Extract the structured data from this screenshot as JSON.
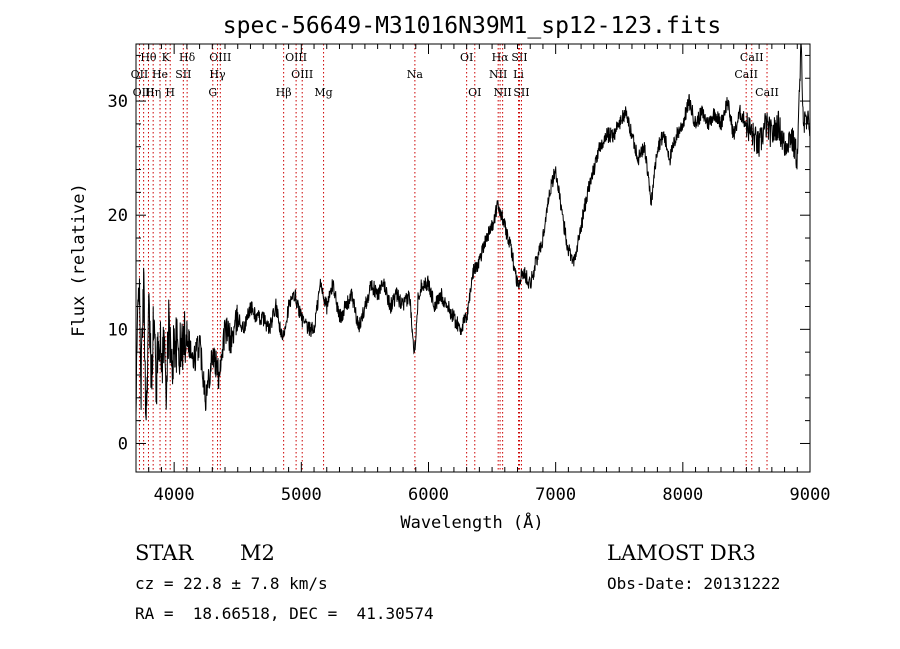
{
  "chart_data": {
    "type": "line",
    "title": "spec-56649-M31016N39M1_sp12-123.fits",
    "xlabel": "Wavelength (Å)",
    "ylabel": "Flux (relative)",
    "xlim": [
      3700,
      9000
    ],
    "ylim": [
      -2.5,
      35
    ],
    "xticks": [
      4000,
      5000,
      6000,
      7000,
      8000,
      9000
    ],
    "yticks": [
      0,
      10,
      20,
      30
    ],
    "grid": false,
    "line_color": "#000000",
    "marker_color": "#cc0000",
    "spectrum": {
      "x": [
        3700,
        3720,
        3740,
        3760,
        3780,
        3800,
        3820,
        3840,
        3860,
        3880,
        3900,
        3920,
        3940,
        3960,
        3980,
        4000,
        4050,
        4100,
        4150,
        4200,
        4250,
        4300,
        4350,
        4400,
        4450,
        4500,
        4550,
        4600,
        4650,
        4700,
        4750,
        4800,
        4850,
        4900,
        4950,
        5000,
        5050,
        5100,
        5150,
        5200,
        5250,
        5300,
        5350,
        5400,
        5450,
        5500,
        5550,
        5600,
        5650,
        5700,
        5750,
        5800,
        5850,
        5890,
        5920,
        5950,
        6000,
        6050,
        6100,
        6150,
        6200,
        6250,
        6300,
        6350,
        6400,
        6450,
        6500,
        6550,
        6600,
        6650,
        6700,
        6750,
        6800,
        6850,
        6900,
        6950,
        7000,
        7050,
        7100,
        7150,
        7200,
        7250,
        7300,
        7350,
        7400,
        7450,
        7500,
        7550,
        7600,
        7650,
        7700,
        7750,
        7800,
        7850,
        7900,
        7950,
        8000,
        8050,
        8100,
        8150,
        8200,
        8250,
        8300,
        8350,
        8400,
        8450,
        8500,
        8550,
        8600,
        8650,
        8700,
        8750,
        8800,
        8850,
        8900,
        8930,
        8950,
        9000
      ],
      "y": [
        2,
        16,
        5,
        14,
        2,
        12,
        6,
        11,
        5,
        10,
        7,
        9,
        5,
        11,
        6,
        9,
        8,
        10,
        7,
        9,
        4,
        8,
        6,
        10,
        9,
        11,
        10,
        12,
        11,
        11,
        10,
        12,
        9,
        12,
        13,
        11,
        10,
        10,
        14,
        12,
        14,
        11,
        12,
        13,
        10,
        12,
        14,
        13,
        14,
        12,
        13,
        12,
        13,
        8,
        13,
        14,
        14,
        12,
        13,
        12,
        11,
        10,
        11,
        15,
        16,
        18,
        19,
        21,
        19,
        17,
        14,
        15,
        14,
        16,
        18,
        22,
        24,
        20,
        17,
        16,
        19,
        22,
        24,
        26,
        27,
        27,
        28,
        29,
        27,
        25,
        26,
        21,
        26,
        27,
        25,
        27,
        28,
        30,
        28,
        29,
        28,
        29,
        28,
        30,
        27,
        29,
        28,
        27,
        26,
        28,
        27,
        28,
        26,
        27,
        25,
        35,
        28,
        28
      ]
    },
    "line_markers": [
      {
        "label": "Hθ",
        "x": 3798,
        "row": 1
      },
      {
        "label": "K",
        "x": 3934,
        "row": 1
      },
      {
        "label": "Hδ",
        "x": 4102,
        "row": 1
      },
      {
        "label": "OIII",
        "x": 4363,
        "row": 1
      },
      {
        "label": "OIII",
        "x": 4959,
        "row": 1
      },
      {
        "label": "OI",
        "x": 6300,
        "row": 1
      },
      {
        "label": "Hα",
        "x": 6563,
        "row": 1
      },
      {
        "label": "SII",
        "x": 6716,
        "row": 1
      },
      {
        "label": "CaII",
        "x": 8542,
        "row": 1
      },
      {
        "label": "OII",
        "x": 3727,
        "row": 2
      },
      {
        "label": "He",
        "x": 3889,
        "row": 2
      },
      {
        "label": "SII",
        "x": 4072,
        "row": 2
      },
      {
        "label": "Hγ",
        "x": 4341,
        "row": 2
      },
      {
        "label": "OIII",
        "x": 5007,
        "row": 2
      },
      {
        "label": "Na",
        "x": 5893,
        "row": 2
      },
      {
        "label": "NII",
        "x": 6548,
        "row": 2
      },
      {
        "label": "Li",
        "x": 6708,
        "row": 2
      },
      {
        "label": "CaII",
        "x": 8498,
        "row": 2
      },
      {
        "label": "OIII",
        "x": 3760,
        "row": 3
      },
      {
        "label": "Hη",
        "x": 3835,
        "row": 3
      },
      {
        "label": "H",
        "x": 3969,
        "row": 3
      },
      {
        "label": "G",
        "x": 4304,
        "row": 3
      },
      {
        "label": "Hβ",
        "x": 4861,
        "row": 3
      },
      {
        "label": "Mg",
        "x": 5175,
        "row": 3
      },
      {
        "label": "OI",
        "x": 6364,
        "row": 3
      },
      {
        "label": "NII",
        "x": 6583,
        "row": 3
      },
      {
        "label": "SII",
        "x": 6731,
        "row": 3
      },
      {
        "label": "CaII",
        "x": 8662,
        "row": 3
      }
    ]
  },
  "info": {
    "object_type": "STAR",
    "subclass": "M2",
    "survey": "LAMOST DR3",
    "redshift": "cz = 22.8 ± 7.8 km/s",
    "obs_date": "Obs-Date: 20131222",
    "coords": "RA =  18.66518, DEC =  41.30574"
  }
}
